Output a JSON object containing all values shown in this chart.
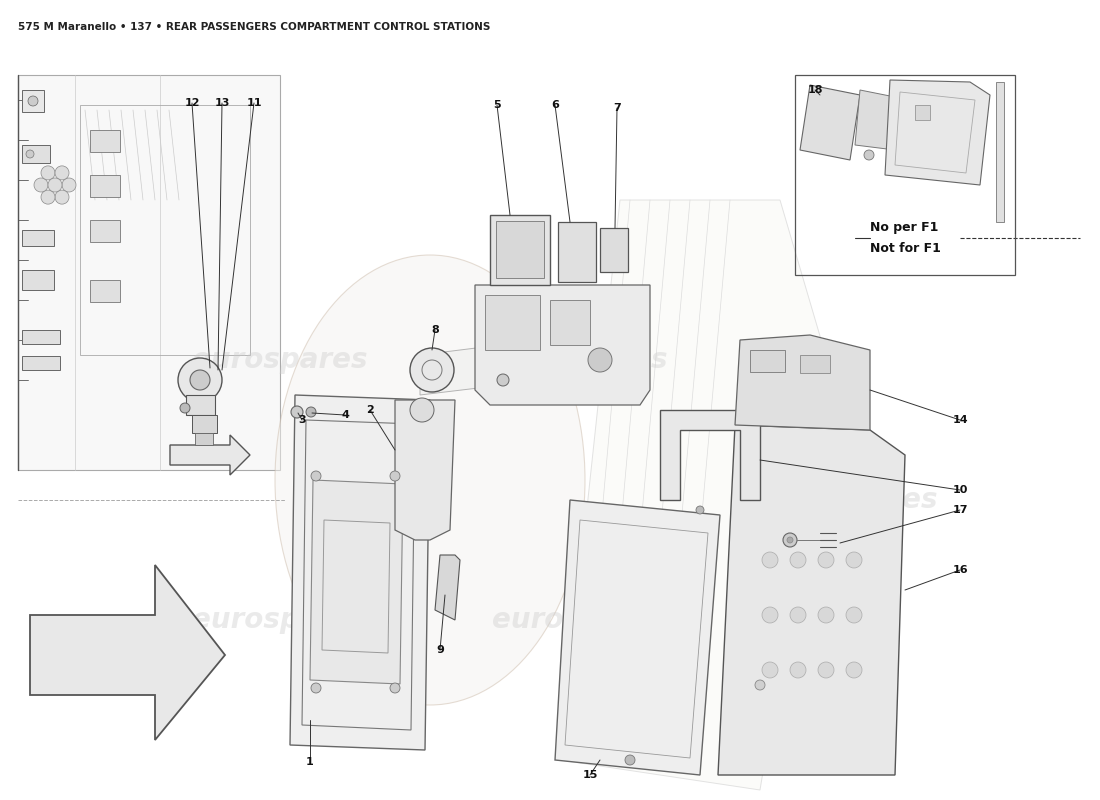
{
  "title": "575 M Maranello • 137 • REAR PASSENGERS COMPARTMENT CONTROL STATIONS",
  "title_fontsize": 7.5,
  "title_color": "#222222",
  "background_color": "#ffffff",
  "watermark_text": "eurospares",
  "watermark_color": "#cccccc",
  "no_f1_text": [
    "No per F1",
    "Not for F1"
  ]
}
